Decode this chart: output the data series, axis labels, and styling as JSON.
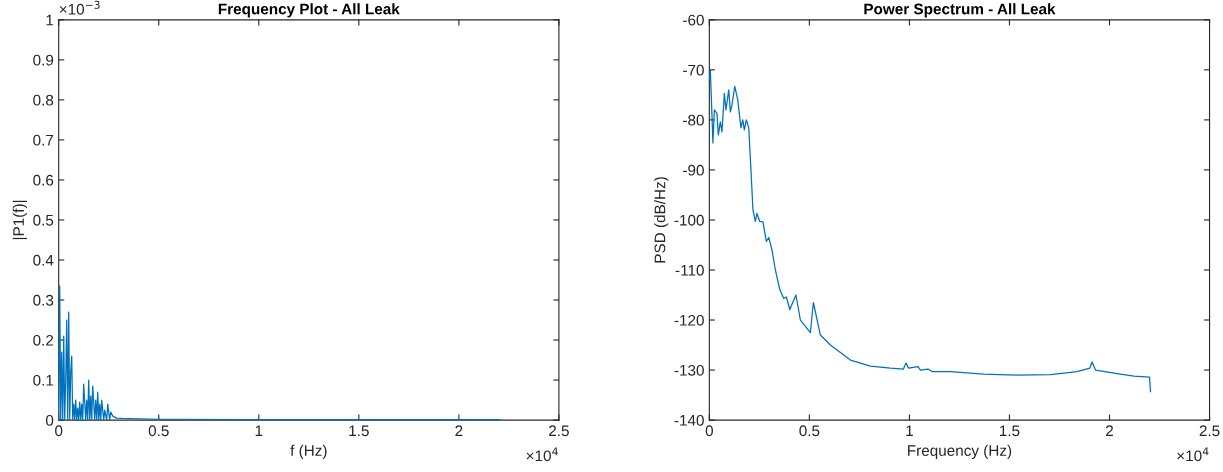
{
  "chart_data": [
    {
      "type": "line",
      "title": "Frequency Plot - All Leak",
      "xlabel": "f (Hz)",
      "ylabel": "|P1(f)|",
      "annotations": [
        "×10$^{−3}$",
        "×10$^{4}$"
      ],
      "x": [
        0,
        0.005,
        0.01,
        0.015,
        0.02,
        0.025,
        0.03,
        0.035,
        0.04,
        0.045,
        0.05,
        0.055,
        0.06,
        0.065,
        0.07,
        0.075,
        0.08,
        0.085,
        0.09,
        0.095,
        0.1,
        0.105,
        0.11,
        0.115,
        0.12,
        0.125,
        0.135,
        0.14,
        0.145,
        0.15,
        0.155,
        0.16,
        0.165,
        0.17,
        0.18,
        0.185,
        0.19,
        0.195,
        0.2,
        0.205,
        0.21,
        0.215,
        0.225,
        0.23,
        0.24,
        0.245,
        0.255,
        0.26,
        0.27,
        0.29,
        0.32,
        0.4,
        0.5,
        1.0,
        1.5,
        2.0,
        2.205
      ],
      "series": [
        {
          "color": "#0072bd",
          "values": [
            0,
            0.335,
            0,
            0.17,
            0,
            0.21,
            0,
            0.1,
            0.25,
            0,
            0.27,
            0,
            0.12,
            0.16,
            0,
            0.04,
            0,
            0.05,
            0,
            0.03,
            0,
            0.045,
            0,
            0.04,
            0,
            0.09,
            0,
            0.05,
            0,
            0.1,
            0,
            0.06,
            0,
            0.085,
            0,
            0.05,
            0,
            0.07,
            0,
            0.04,
            0,
            0.05,
            0,
            0.025,
            0,
            0.04,
            0,
            0.02,
            0.01,
            0.005,
            0.004,
            0.003,
            0.002,
            0.001,
            0.001,
            0.001,
            0.001
          ]
        }
      ],
      "xlim": [
        0,
        2.5
      ],
      "ylim": [
        0,
        1
      ],
      "xticks": [
        0,
        0.5,
        1,
        1.5,
        2,
        2.5
      ],
      "yticks": [
        0,
        0.1,
        0.2,
        0.3,
        0.4,
        0.5,
        0.6,
        0.7,
        0.8,
        0.9,
        1
      ]
    },
    {
      "type": "line",
      "title": "Power Spectrum - All Leak",
      "xlabel": "Frequency (Hz)",
      "ylabel": "PSD (dB/Hz)",
      "annotations": [
        "×10$^{4}$"
      ],
      "x": [
        0,
        0.005,
        0.018,
        0.025,
        0.038,
        0.045,
        0.055,
        0.063,
        0.075,
        0.083,
        0.097,
        0.105,
        0.113,
        0.127,
        0.142,
        0.158,
        0.167,
        0.175,
        0.185,
        0.197,
        0.208,
        0.218,
        0.23,
        0.238,
        0.252,
        0.268,
        0.285,
        0.297,
        0.313,
        0.33,
        0.352,
        0.372,
        0.385,
        0.402,
        0.433,
        0.455,
        0.505,
        0.52,
        0.555,
        0.605,
        0.705,
        0.805,
        0.905,
        0.97,
        0.983,
        0.995,
        1.043,
        1.055,
        1.093,
        1.113,
        1.205,
        1.37,
        1.538,
        1.705,
        1.838,
        1.902,
        1.913,
        1.93,
        2.038,
        2.122,
        2.2,
        2.205
      ],
      "series": [
        {
          "color": "#0072bd",
          "values": [
            -72,
            -70,
            -84.6,
            -78,
            -78.7,
            -83,
            -80.4,
            -82.4,
            -74.7,
            -78,
            -74,
            -78.4,
            -77,
            -73.3,
            -76,
            -81.6,
            -80,
            -82,
            -80,
            -81.6,
            -90,
            -98,
            -100.3,
            -98.7,
            -100.3,
            -100.4,
            -104.3,
            -103.5,
            -106,
            -110,
            -113.9,
            -115.7,
            -115.4,
            -117.9,
            -115,
            -120,
            -122.5,
            -116.5,
            -123,
            -125,
            -128,
            -129.2,
            -129.6,
            -129.8,
            -128.6,
            -129.6,
            -129.3,
            -130,
            -129.8,
            -130.3,
            -130.3,
            -130.8,
            -131,
            -130.9,
            -130.3,
            -129.6,
            -128.4,
            -130,
            -130.7,
            -131.2,
            -131.4,
            -134.3
          ]
        }
      ],
      "xlim": [
        0,
        2.5
      ],
      "ylim": [
        -140,
        -60
      ],
      "xticks": [
        0,
        0.5,
        1,
        1.5,
        2,
        2.5
      ],
      "yticks": [
        -140,
        -130,
        -120,
        -110,
        -100,
        -90,
        -80,
        -70,
        -60
      ]
    }
  ]
}
